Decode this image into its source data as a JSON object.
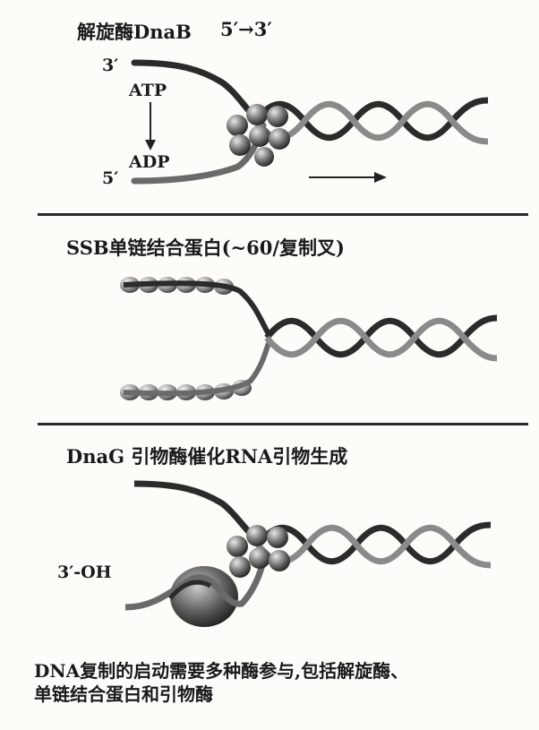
{
  "panel1": {
    "title": "解旋酶DnaB",
    "direction": "5′→3′",
    "label_3prime": "3′",
    "label_5prime": "5′",
    "label_atp": "ATP",
    "label_adp": "ADP"
  },
  "panel2": {
    "title": "SSB单链结合蛋白(~60/复制叉)"
  },
  "panel3": {
    "title": "DnaG 引物酶催化RNA引物生成",
    "label_3oh": "3′-OH"
  },
  "caption": {
    "line1": "DNA复制的启动需要多种酶参与,包括解旋酶、",
    "line2": "单链结合蛋白和引物酶"
  }
}
